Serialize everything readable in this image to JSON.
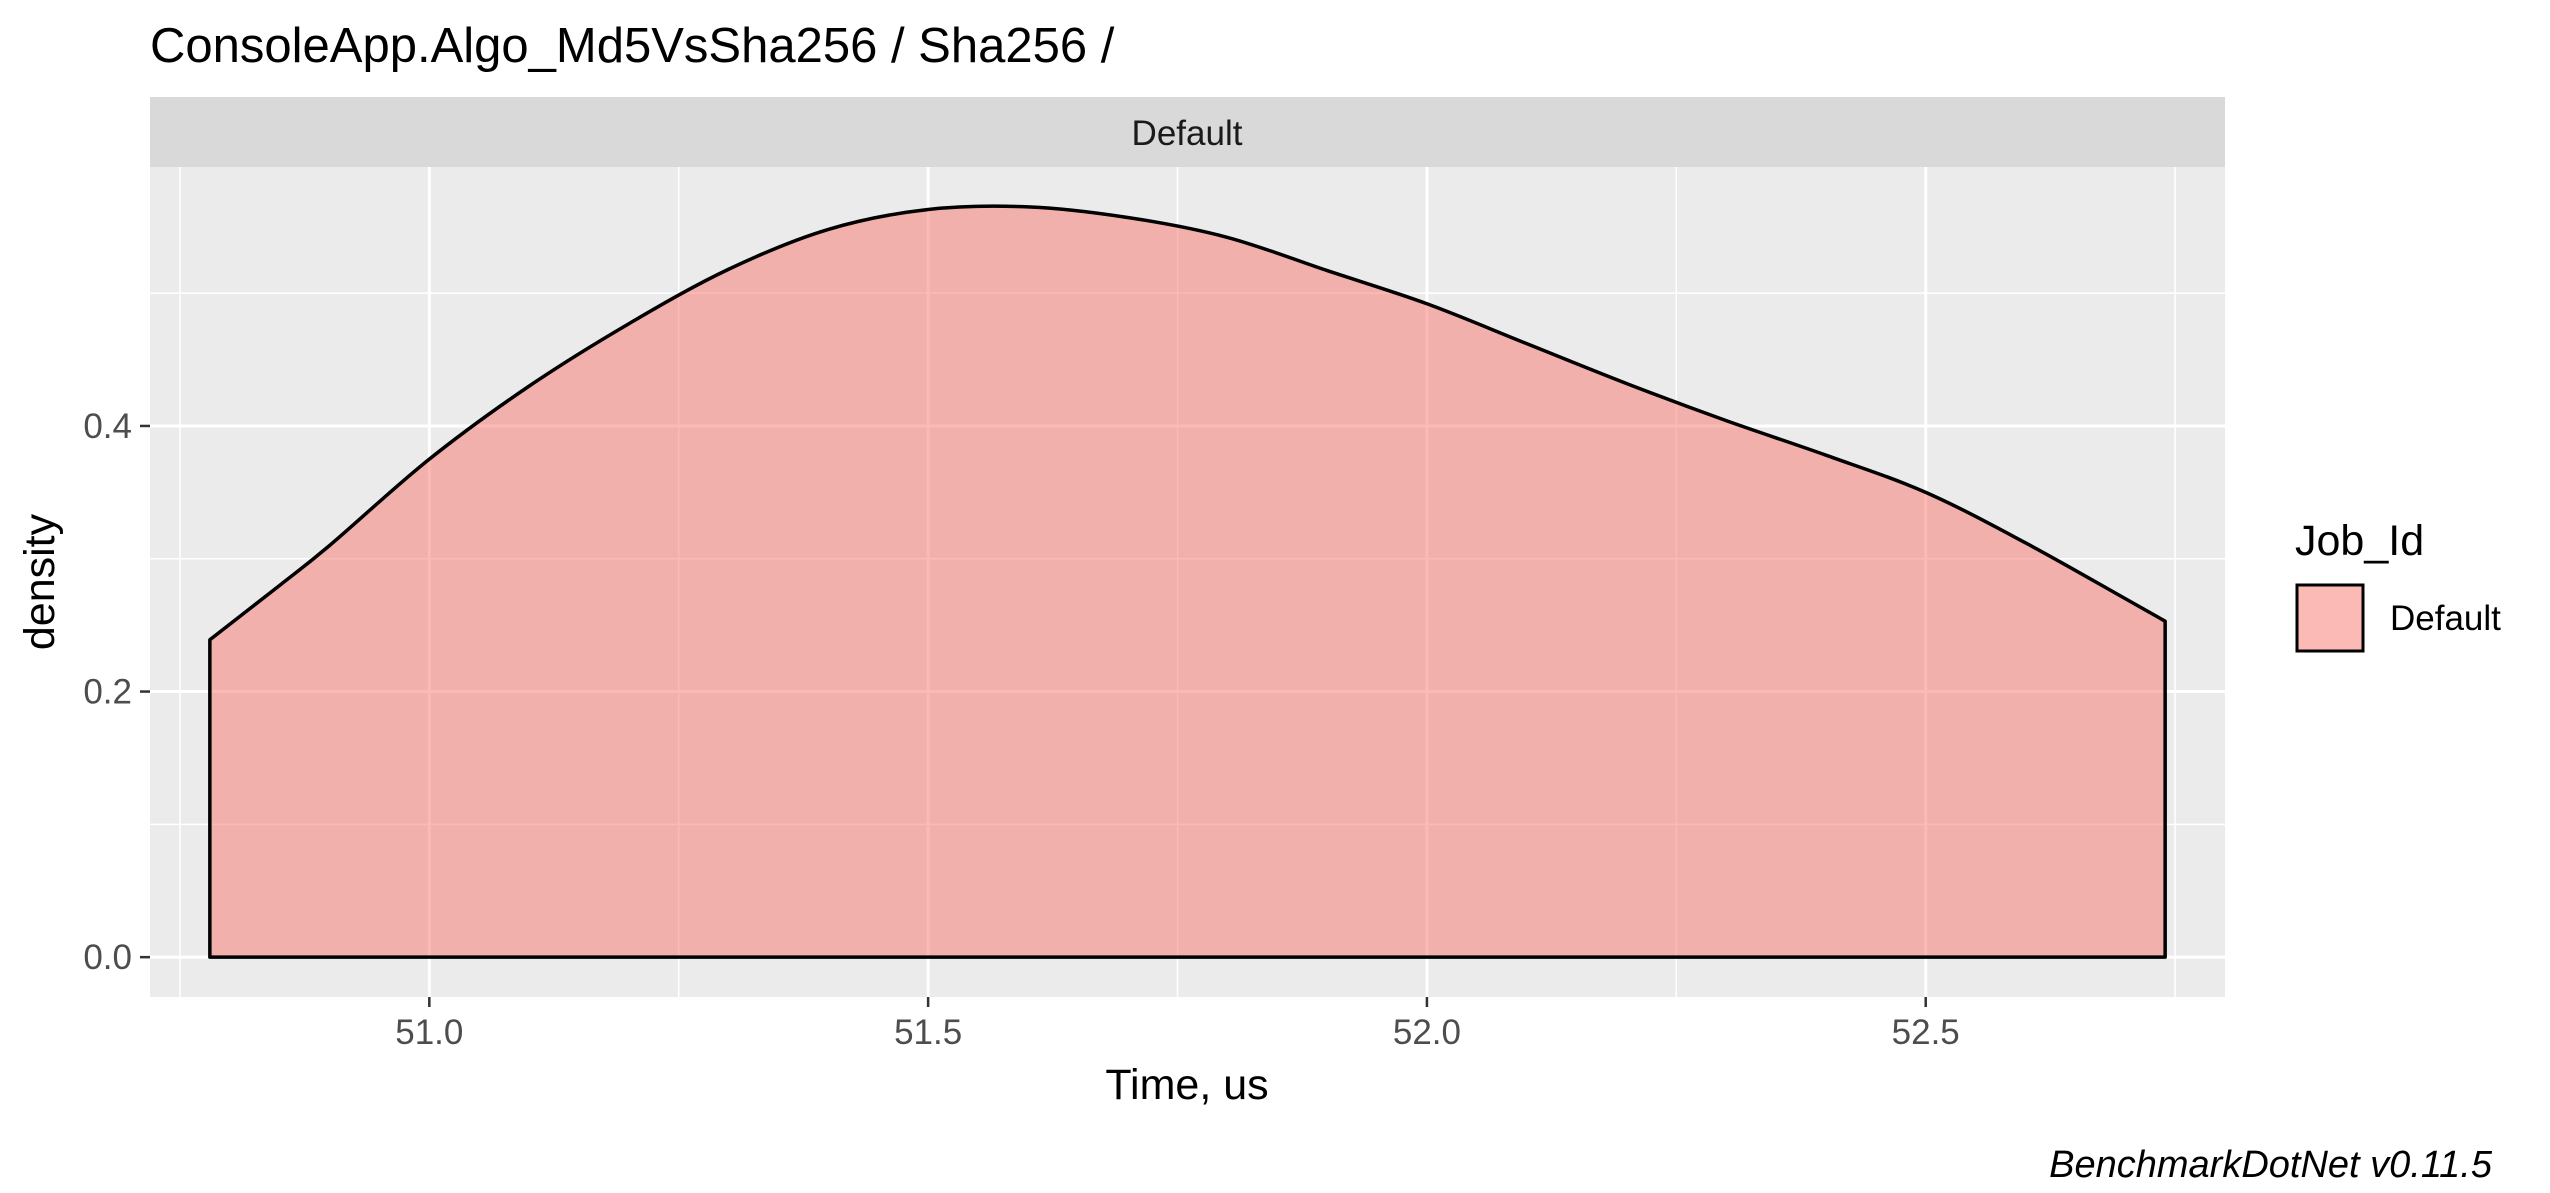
{
  "chart_data": {
    "type": "area",
    "title": "ConsoleApp.Algo_Md5VsSha256 / Sha256 /",
    "facet_label": "Default",
    "xlabel": "Time, us",
    "ylabel": "density",
    "caption": "BenchmarkDotNet v0.11.5",
    "xlim": [
      50.72,
      52.8
    ],
    "ylim": [
      -0.03,
      0.595
    ],
    "x_ticks": [
      51.0,
      51.5,
      52.0,
      52.5
    ],
    "x_tick_labels": [
      "51.0",
      "51.5",
      "52.0",
      "52.5"
    ],
    "y_ticks": [
      0.0,
      0.2,
      0.4
    ],
    "y_tick_labels": [
      "0.0",
      "0.2",
      "0.4"
    ],
    "grid": true,
    "legend": {
      "title": "Job_Id",
      "position": "right",
      "items": [
        {
          "label": "Default",
          "color": "#F8766D"
        }
      ]
    },
    "series": [
      {
        "name": "Default",
        "fill": "#F8766D",
        "fill_opacity": 0.5,
        "stroke": "#000000",
        "x": [
          50.78,
          50.85,
          50.9,
          51.0,
          51.1,
          51.2,
          51.3,
          51.4,
          51.5,
          51.6,
          51.7,
          51.8,
          51.9,
          52.0,
          52.1,
          52.2,
          52.3,
          52.4,
          52.5,
          52.6,
          52.7,
          52.74
        ],
        "y": [
          0.239,
          0.28,
          0.31,
          0.375,
          0.43,
          0.477,
          0.518,
          0.548,
          0.563,
          0.565,
          0.557,
          0.542,
          0.517,
          0.492,
          0.462,
          0.432,
          0.404,
          0.378,
          0.35,
          0.312,
          0.27,
          0.253
        ]
      }
    ]
  }
}
